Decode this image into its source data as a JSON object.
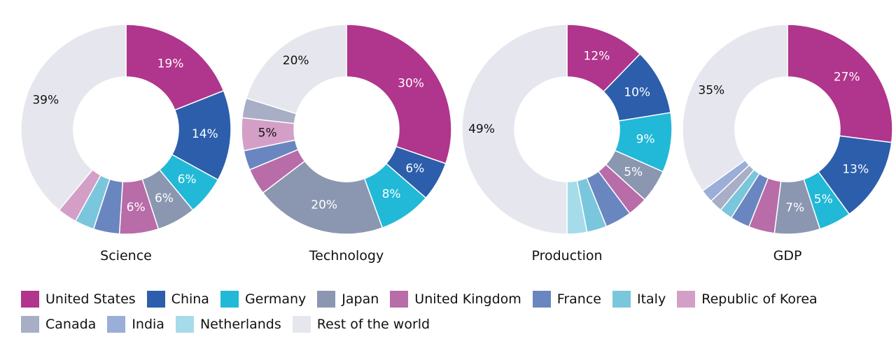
{
  "chart_data": {
    "type": "pie",
    "legend_position": "bottom",
    "categories": [
      "United States",
      "China",
      "Germany",
      "Japan",
      "United Kingdom",
      "France",
      "Italy",
      "Republic of Korea",
      "Canada",
      "India",
      "Netherlands",
      "Rest of the world"
    ],
    "colors": {
      "United States": "#b0358c",
      "China": "#2c5eab",
      "Germany": "#21b9d7",
      "Japan": "#8b97b1",
      "United Kingdom": "#b86ca8",
      "France": "#6a86c0",
      "Italy": "#7ac6dc",
      "Republic of Korea": "#d49fc7",
      "Canada": "#a8aec5",
      "India": "#9aaed8",
      "Netherlands": "#a6dcea",
      "Rest of the world": "#e6e6ee"
    },
    "charts": [
      {
        "caption": "Science",
        "values": {
          "United States": 19,
          "China": 14,
          "Germany": 6,
          "Japan": 6,
          "United Kingdom": 6,
          "France": 4,
          "Italy": 3,
          "Republic of Korea": 3,
          "Rest of the world": 39
        },
        "labels": {
          "United States": "19%",
          "China": "14%",
          "Germany": "6%",
          "Japan": "6%",
          "United Kingdom": "6%",
          "Rest of the world": "39%"
        }
      },
      {
        "caption": "Technology",
        "values": {
          "United States": 30,
          "China": 6,
          "Germany": 8,
          "Japan": 20,
          "United Kingdom": 4,
          "France": 3,
          "Republic of Korea": 5,
          "Canada": 3,
          "Rest of the world": 20
        },
        "labels": {
          "United States": "30%",
          "China": "6%",
          "Germany": "8%",
          "Japan": "20%",
          "Republic of Korea": "5%",
          "Rest of the world": "20%"
        }
      },
      {
        "caption": "Production",
        "values": {
          "United States": 12,
          "China": 10,
          "Germany": 9,
          "Japan": 5,
          "United Kingdom": 3,
          "France": 4,
          "Italy": 3,
          "Netherlands": 3,
          "Rest of the world": 49
        },
        "labels": {
          "United States": "12%",
          "China": "10%",
          "Germany": "9%",
          "Japan": "5%",
          "Rest of the world": "49%"
        }
      },
      {
        "caption": "GDP",
        "values": {
          "United States": 27,
          "China": 13,
          "Germany": 5,
          "Japan": 7,
          "United Kingdom": 4,
          "France": 3,
          "Italy": 2,
          "Canada": 2,
          "India": 2,
          "Rest of the world": 35
        },
        "labels": {
          "United States": "27%",
          "China": "13%",
          "Germany": "5%",
          "Japan": "7%",
          "Rest of the world": "35%"
        }
      }
    ]
  }
}
